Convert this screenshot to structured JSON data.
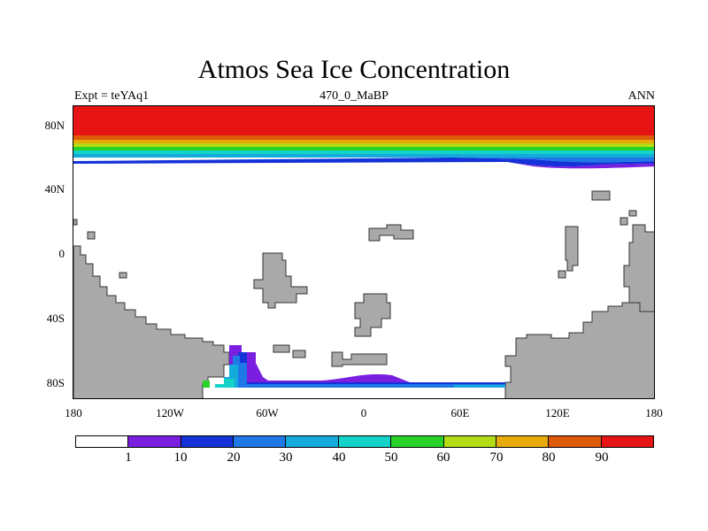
{
  "title": "Atmos Sea Ice Concentration",
  "left_label": "Expt = teYAq1",
  "center_label": "470_0_MaBP",
  "right_label": "ANN",
  "y_ticks": [
    "80N",
    "40N",
    "0",
    "40S",
    "80S"
  ],
  "x_ticks": [
    "180",
    "120W",
    "60W",
    "0",
    "60E",
    "120E",
    "180"
  ],
  "colorbar": {
    "colors": [
      "#ffffff",
      "#7a1ee0",
      "#1432d8",
      "#1e78e6",
      "#14aadc",
      "#14d2c8",
      "#28d228",
      "#b4dc14",
      "#e6aa0a",
      "#dc5a0a",
      "#e61414"
    ],
    "labels": [
      "1",
      "10",
      "20",
      "30",
      "40",
      "50",
      "60",
      "70",
      "80",
      "90"
    ]
  }
}
